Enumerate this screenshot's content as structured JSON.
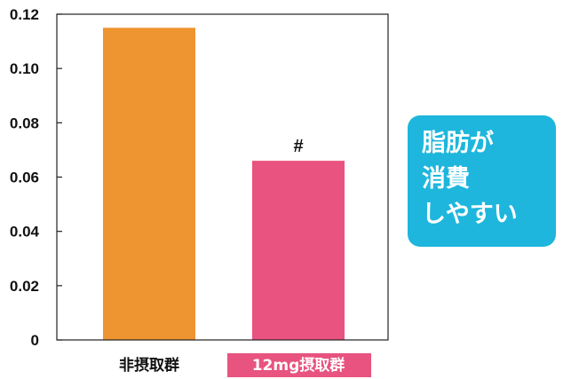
{
  "chart_data": {
    "type": "bar",
    "categories": [
      "非摂取群",
      "12mg摂取群"
    ],
    "values": [
      0.115,
      0.066
    ],
    "ylim": [
      0,
      0.12
    ],
    "yticks": [
      "0",
      "0.02",
      "0.04",
      "0.06",
      "0.08",
      "0.10",
      "0.12"
    ],
    "grid": false,
    "annotations": [
      {
        "category": "12mg摂取群",
        "text": "#"
      }
    ]
  },
  "colors": {
    "bar_control": "#ee9430",
    "bar_treatment": "#e8537f",
    "label_highlight_bg": "#e8537f",
    "callout_bg": "#1eb6dc",
    "axis": "#222222"
  },
  "callout": {
    "lines": [
      "脂肪が",
      "消費",
      "しやすい"
    ]
  }
}
